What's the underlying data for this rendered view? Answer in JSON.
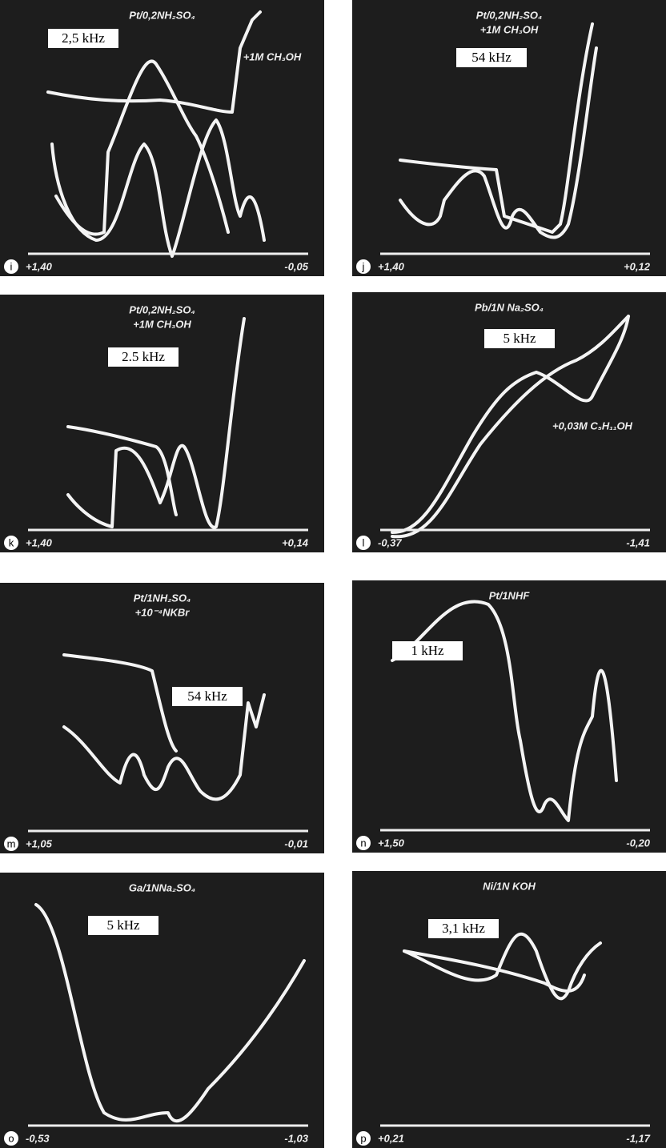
{
  "panels": [
    {
      "letter": "i",
      "title": [
        "Pt/0,2NH₂SO₄"
      ],
      "frequency": "2,5 kHz",
      "annotation": "+1M CH₃OH",
      "left_label": "+1,40",
      "right_label": "-0,05"
    },
    {
      "letter": "j",
      "title": [
        "Pt/0,2NH₂SO₄",
        "+1M CH₃OH"
      ],
      "frequency": "54 kHz",
      "left_label": "+1,40",
      "right_label": "+0,12"
    },
    {
      "letter": "k",
      "title": [
        "Pt/0,2NH₂SO₄",
        "+1M CH₃OH"
      ],
      "frequency": "2.5 kHz",
      "left_label": "+1,40",
      "right_label": "+0,14"
    },
    {
      "letter": "l",
      "title": [
        "Pb/1N Na₂SO₄"
      ],
      "frequency": "5 kHz",
      "annotation": "+0,03M C₅H₁₁OH",
      "left_label": "-0,37",
      "right_label": "-1,41"
    },
    {
      "letter": "m",
      "title": [
        "Pt/1NH₂SO₄",
        "+10⁻⁴NKBr"
      ],
      "frequency": "54 kHz",
      "left_label": "+1,05",
      "right_label": "-0,01"
    },
    {
      "letter": "n",
      "title": [
        "Pt/1NHF"
      ],
      "frequency": "1 kHz",
      "left_label": "+1,50",
      "right_label": "-0,20"
    },
    {
      "letter": "o",
      "title": [
        "Ga/1NNa₂SO₄"
      ],
      "frequency": "5 kHz",
      "left_label": "-0,53",
      "right_label": "-1,03"
    },
    {
      "letter": "p",
      "title": [
        "Ni/1N KOH"
      ],
      "frequency": "3,1 kHz",
      "left_label": "+0,21",
      "right_label": "-1,17"
    }
  ]
}
